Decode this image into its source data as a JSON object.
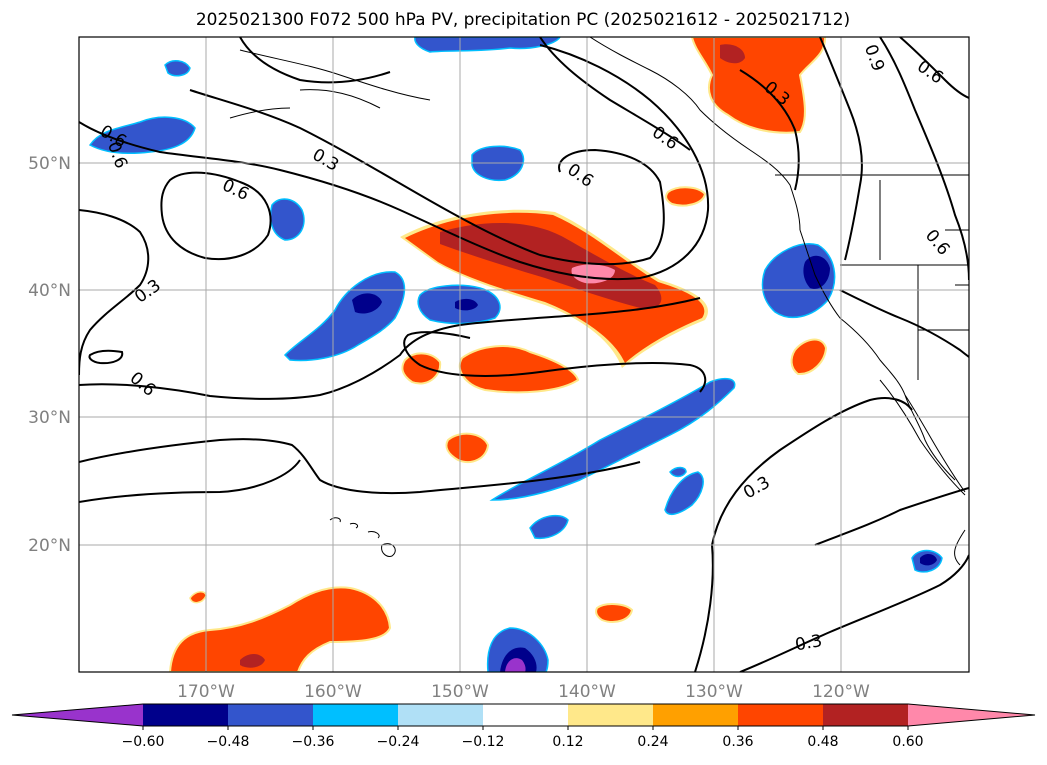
{
  "title": "2025021300 F072 500 hPa PV, precipitation PC (2025021612 - 2025021712)",
  "map": {
    "lon_labels": [
      "170°W",
      "160°W",
      "150°W",
      "140°W",
      "130°W",
      "120°W"
    ],
    "lat_labels": [
      "50°N",
      "40°N",
      "30°N",
      "20°N"
    ],
    "contour_labels": [
      "0.3",
      "0.6",
      "0.6",
      "0.3",
      "0.6",
      "0.9",
      "0.6",
      "0.3",
      "0.6",
      "0.6",
      "0.6",
      "0.3",
      "0.3",
      "0.6"
    ],
    "gridlines": true
  },
  "colorbar": {
    "ticks": [
      "−0.60",
      "−0.48",
      "−0.36",
      "−0.24",
      "−0.12",
      "0.12",
      "0.24",
      "0.36",
      "0.48",
      "0.60"
    ],
    "colors": [
      "#9933cc",
      "#00008b",
      "#3355cc",
      "#00bfff",
      "#b0e0f6",
      "#ffffff",
      "#ffe88a",
      "#ffa000",
      "#ff4500",
      "#b22222",
      "#ff88aa"
    ],
    "extend": "both"
  }
}
